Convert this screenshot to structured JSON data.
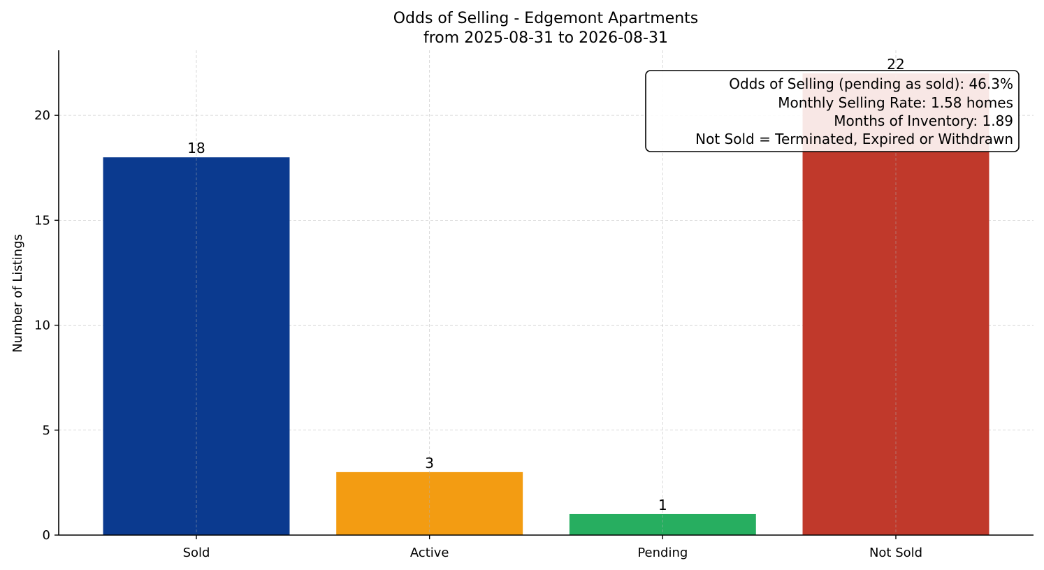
{
  "chart_data": {
    "type": "bar",
    "title": "Odds of Selling - Edgemont Apartments",
    "subtitle": "from 2025-08-31 to 2026-08-31",
    "xlabel": "",
    "ylabel": "Number of Listings",
    "categories": [
      "Sold",
      "Active",
      "Pending",
      "Not Sold"
    ],
    "values": [
      18,
      3,
      1,
      22
    ],
    "colors": [
      "#0b3a8f",
      "#f39c12",
      "#27ae60",
      "#c0392b"
    ],
    "ylim": [
      0,
      23.1
    ],
    "yticks": [
      0,
      5,
      10,
      15,
      20
    ],
    "grid": true,
    "annotation_lines": [
      "Odds of Selling (pending as sold): 46.3%",
      "Monthly Selling Rate: 1.58 homes",
      "Months of Inventory: 1.89",
      "Not Sold = Terminated, Expired or Withdrawn"
    ],
    "annotation_placement": "top-right"
  }
}
